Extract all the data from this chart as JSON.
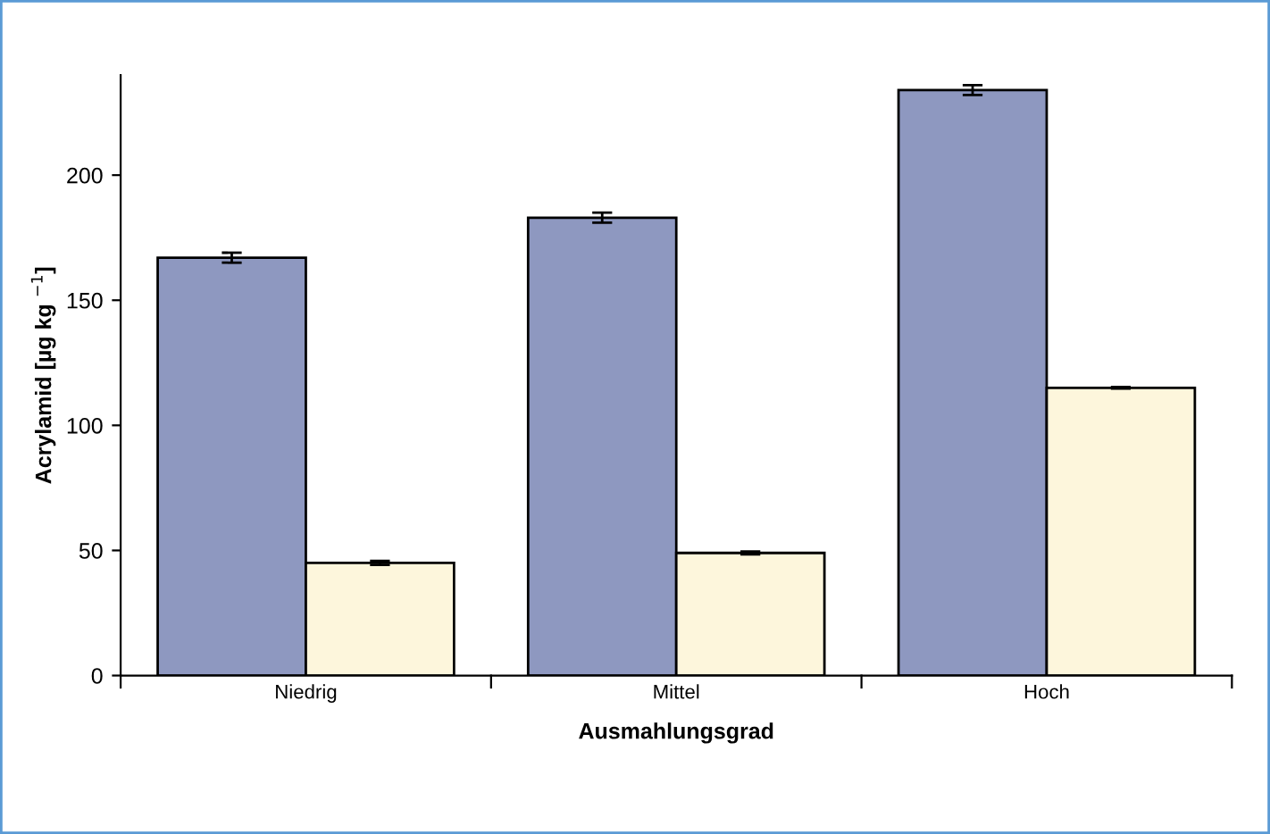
{
  "chart_data": {
    "type": "bar",
    "xlabel": "Ausmahlungsgrad",
    "ylabel": "Acrylamid [µg kg $^{−1}$]",
    "categories": [
      "Niedrig",
      "Mittel",
      "Hoch"
    ],
    "series": [
      {
        "color": "#8e98c0",
        "values": [
          167,
          183,
          234
        ],
        "errors": [
          2,
          2,
          2
        ]
      },
      {
        "color": "#fdf6dc",
        "values": [
          45,
          49,
          115
        ],
        "errors": [
          0.8,
          0.6,
          0.3
        ]
      }
    ],
    "ylim": [
      0,
      240
    ],
    "yticks": [
      0,
      50,
      100,
      150,
      200
    ],
    "grid": false,
    "legend": false
  }
}
